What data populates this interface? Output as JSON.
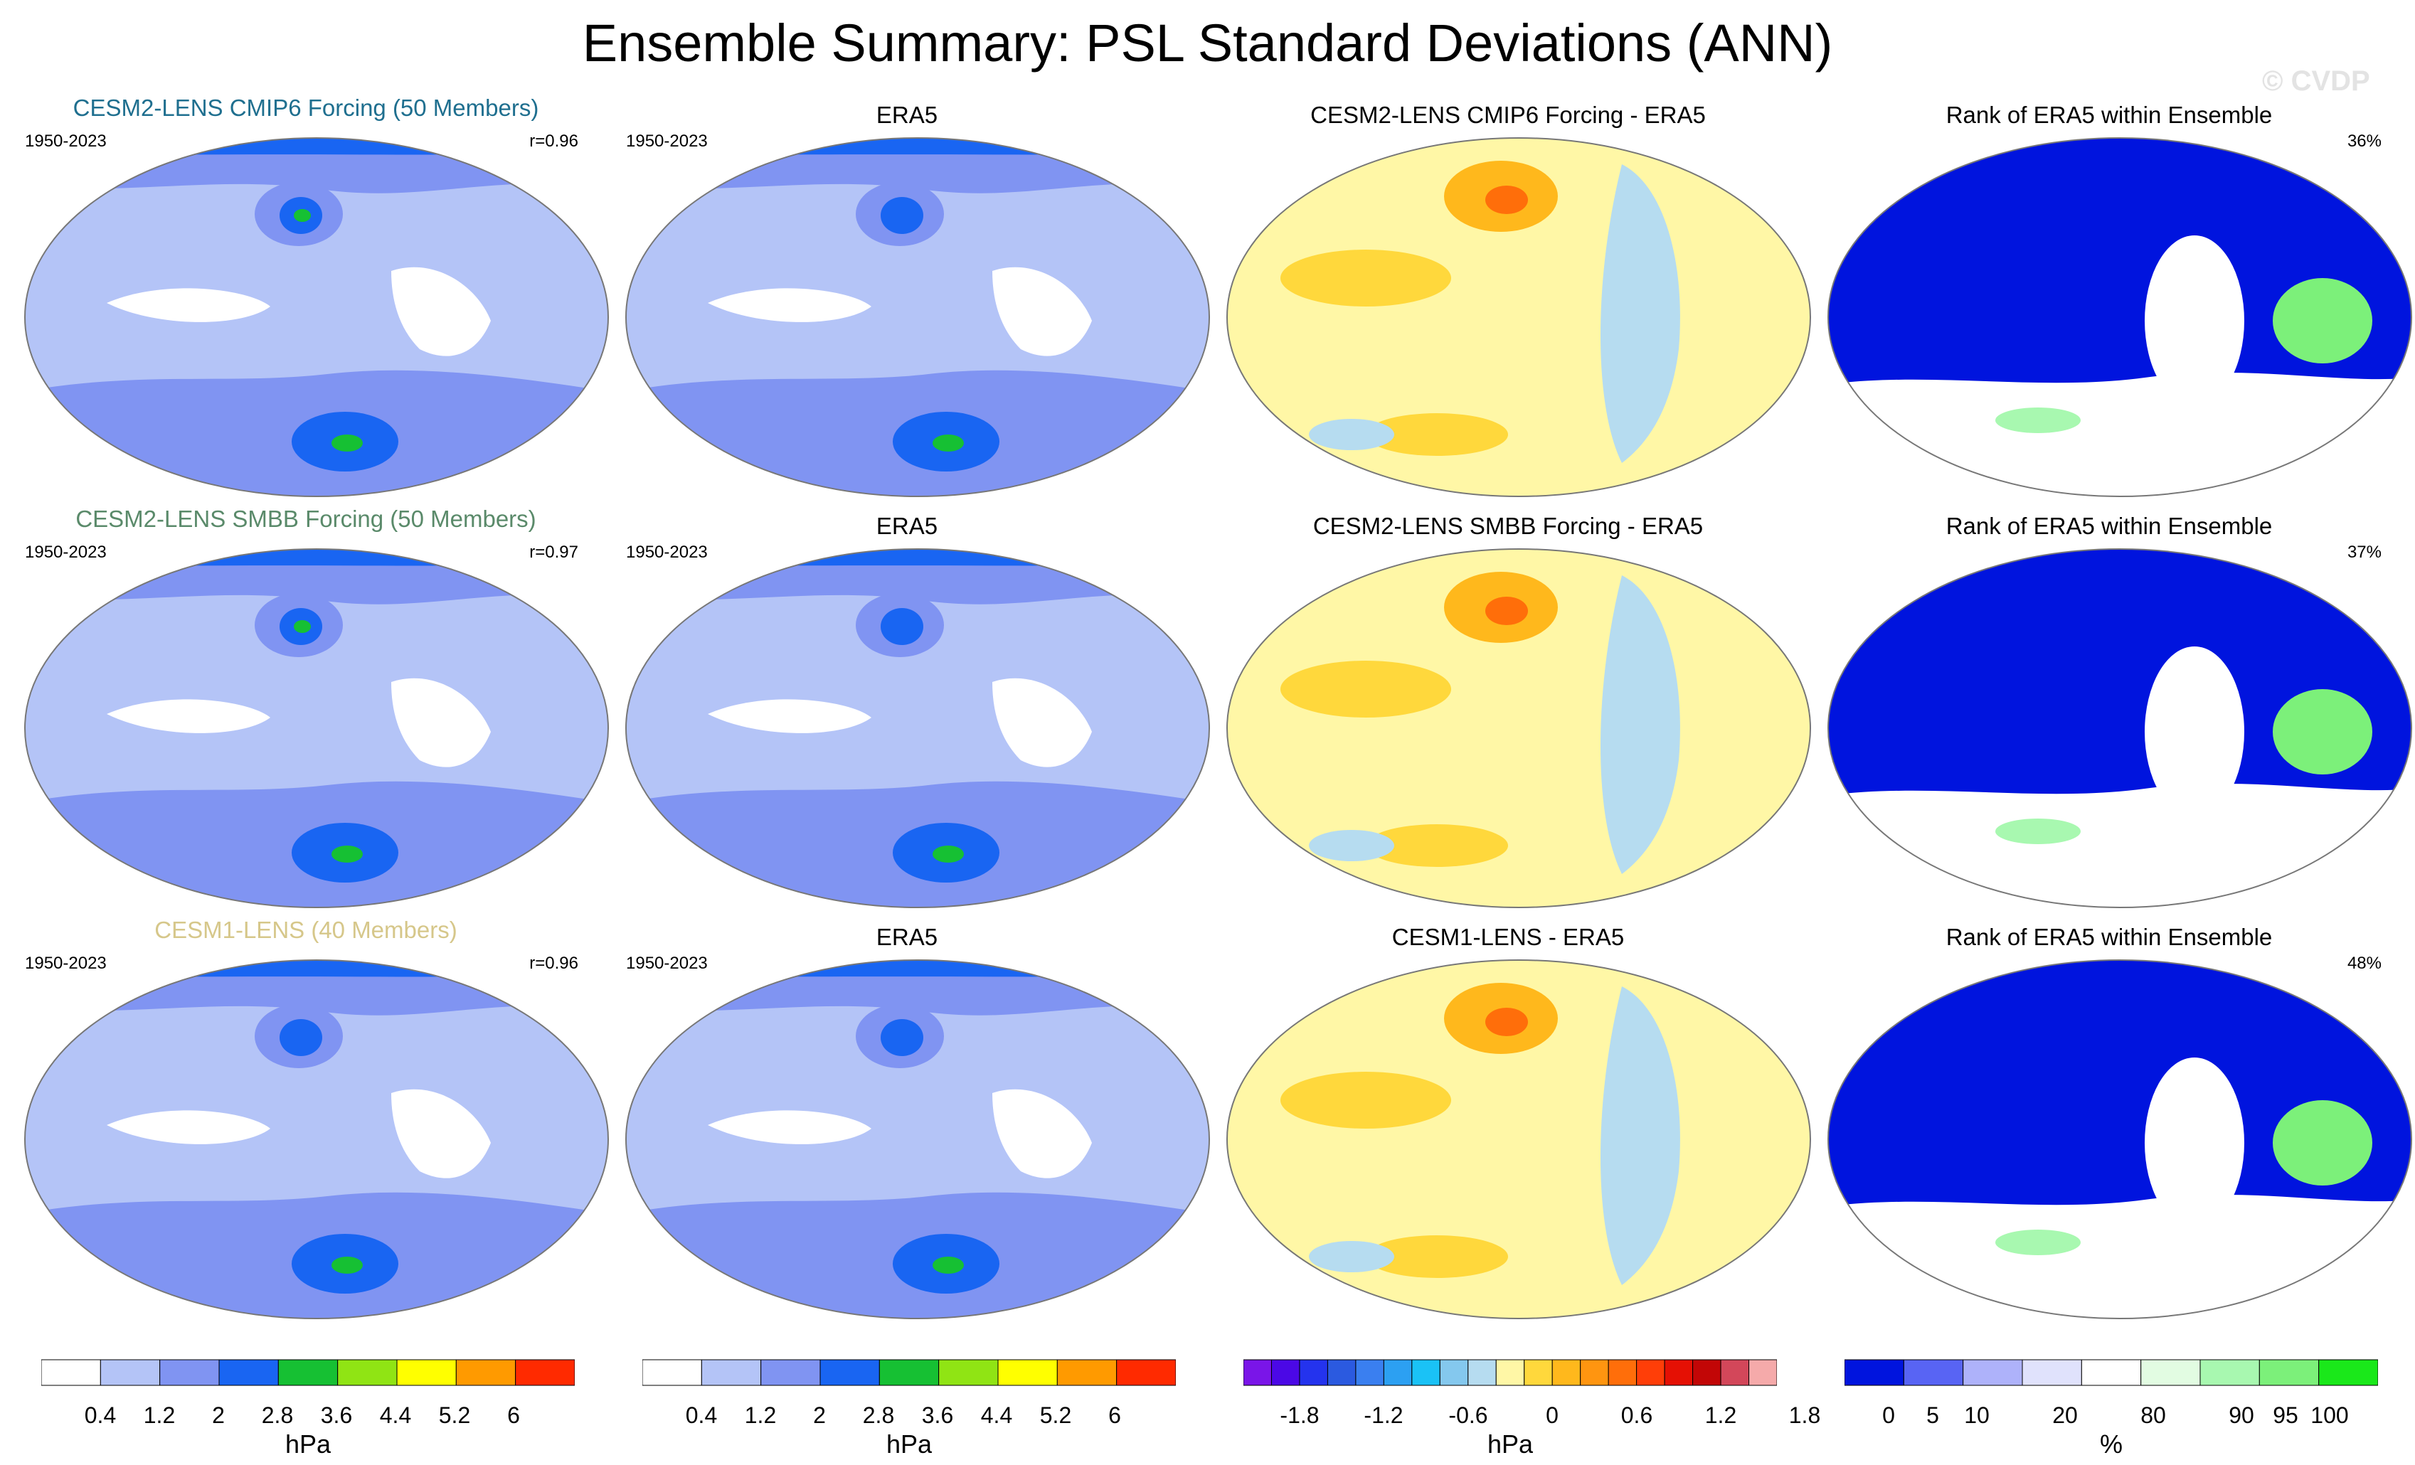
{
  "page": {
    "title": "Ensemble Summary: PSL Standard Deviations (ANN)",
    "watermark": "© CVDP"
  },
  "colors": {
    "stddev_scale": [
      "#ffffff",
      "#b4c4f7",
      "#8094f2",
      "#1965f2",
      "#16c033",
      "#90e414",
      "#ffff00",
      "#ff9a00",
      "#ff2a00"
    ],
    "diff_scale": [
      "#7a15e8",
      "#4b08e6",
      "#2433ee",
      "#2b5ae0",
      "#3a7ff0",
      "#2ca0f2",
      "#1ac2f6",
      "#84c8ee",
      "#b6dcf0",
      "#fff7a6",
      "#ffd83c",
      "#ffb81c",
      "#ff9510",
      "#ff6e0a",
      "#ff3e08",
      "#e51004",
      "#c20606",
      "#d3475a",
      "#f5aaaa"
    ],
    "rank_scale": [
      "#0014de",
      "#5864f4",
      "#aeb2fa",
      "#e0e2fc",
      "#ffffff",
      "#e2fce2",
      "#a8f8b0",
      "#7cf07a",
      "#1ae81a"
    ],
    "title_cmip6": "#1f6f8f",
    "title_smbb": "#5a8a6a",
    "title_cesm1": "#d6c78a"
  },
  "rows": [
    {
      "model": {
        "title": "CESM2-LENS CMIP6 Forcing (50 Members)",
        "years": "1950-2023",
        "corr": "r=0.96"
      },
      "obs": {
        "title": "ERA5",
        "years": "1950-2023"
      },
      "diff": {
        "title": "CESM2-LENS CMIP6 Forcing - ERA5"
      },
      "rank": {
        "title": "Rank of ERA5 within Ensemble",
        "pct": "36%"
      }
    },
    {
      "model": {
        "title": "CESM2-LENS SMBB Forcing (50 Members)",
        "years": "1950-2023",
        "corr": "r=0.97"
      },
      "obs": {
        "title": "ERA5",
        "years": "1950-2023"
      },
      "diff": {
        "title": "CESM2-LENS SMBB Forcing - ERA5"
      },
      "rank": {
        "title": "Rank of ERA5 within Ensemble",
        "pct": "37%"
      }
    },
    {
      "model": {
        "title": "CESM1-LENS (40 Members)",
        "years": "1950-2023",
        "corr": "r=0.96"
      },
      "obs": {
        "title": "ERA5",
        "years": "1950-2023"
      },
      "diff": {
        "title": "CESM1-LENS - ERA5"
      },
      "rank": {
        "title": "Rank of ERA5 within Ensemble",
        "pct": "48%"
      }
    }
  ],
  "colorbars": {
    "stddev": {
      "ticks": [
        "0.4",
        "1.2",
        "2",
        "2.8",
        "3.6",
        "4.4",
        "5.2",
        "6"
      ],
      "unit": "hPa"
    },
    "diff": {
      "ticks": [
        "-1.8",
        "-1.2",
        "-0.6",
        "0",
        "0.6",
        "1.2",
        "1.8"
      ],
      "unit": "hPa"
    },
    "rank": {
      "ticks": [
        "0",
        "5",
        "10",
        "20",
        "80",
        "90",
        "95",
        "100"
      ],
      "unit": "%"
    }
  },
  "chart_data": {
    "type": "heatmap",
    "title": "Ensemble Summary: PSL Standard Deviations (ANN)",
    "period": "1950-2023",
    "variable": "PSL standard deviation",
    "units": "hPa",
    "stddev_levels": [
      0.4,
      1.2,
      2,
      2.8,
      3.6,
      4.4,
      5.2,
      6
    ],
    "diff_levels": [
      -1.8,
      -1.2,
      -0.6,
      0,
      0.6,
      1.2,
      1.8
    ],
    "rank_levels": [
      0,
      5,
      10,
      20,
      80,
      90,
      95,
      100
    ],
    "pattern_correlations": [
      {
        "model": "CESM2-LENS CMIP6 Forcing",
        "members": 50,
        "r": 0.96,
        "era5_rank_pct": 36
      },
      {
        "model": "CESM2-LENS SMBB Forcing",
        "members": 50,
        "r": 0.97,
        "era5_rank_pct": 37
      },
      {
        "model": "CESM1-LENS",
        "members": 40,
        "r": 0.96,
        "era5_rank_pct": 48
      }
    ]
  }
}
